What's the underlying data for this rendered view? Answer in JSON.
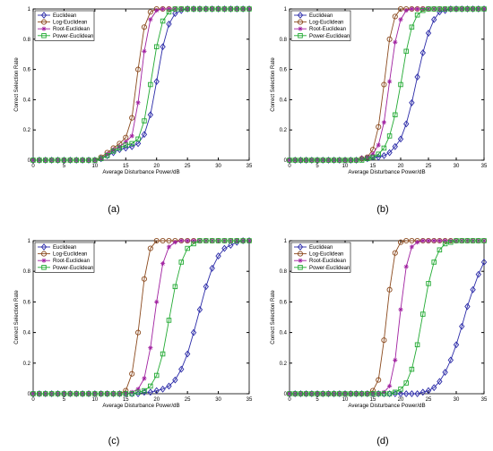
{
  "figure": {
    "panel_labels": [
      "(a)",
      "(b)",
      "(c)",
      "(d)"
    ]
  },
  "chart_data": [
    {
      "type": "line",
      "panel": "(a)",
      "xlabel": "Average Disturbance Power/dB",
      "ylabel": "Correct Selection Rate",
      "xlim": [
        0,
        35
      ],
      "ylim": [
        0,
        1
      ],
      "xticks": [
        0,
        5,
        10,
        15,
        20,
        25,
        30,
        35
      ],
      "yticks": [
        0,
        0.2,
        0.4,
        0.6,
        0.8,
        1
      ],
      "yticklabels": [
        "0",
        "0.2",
        "0.4",
        "0.6",
        "0.8",
        "1"
      ],
      "grid": false,
      "legend": "top-left",
      "x": [
        0,
        1,
        2,
        3,
        4,
        5,
        6,
        7,
        8,
        9,
        10,
        11,
        12,
        13,
        14,
        15,
        16,
        17,
        18,
        19,
        20,
        21,
        22,
        23,
        24,
        25,
        26,
        27,
        28,
        29,
        30,
        31,
        32,
        33,
        34,
        35
      ],
      "series": [
        {
          "name": "Euclidean",
          "color": "#2b2ba8",
          "marker": "diamond",
          "values": [
            0,
            0,
            0,
            0,
            0,
            0,
            0,
            0,
            0,
            0,
            0,
            0.01,
            0.03,
            0.05,
            0.07,
            0.08,
            0.09,
            0.11,
            0.17,
            0.3,
            0.52,
            0.75,
            0.9,
            0.97,
            0.99,
            1,
            1,
            1,
            1,
            1,
            1,
            1,
            1,
            1,
            1,
            1
          ]
        },
        {
          "name": "Log-Euclidean",
          "color": "#8b4a1e",
          "marker": "circle",
          "values": [
            0,
            0,
            0,
            0,
            0,
            0,
            0,
            0,
            0,
            0,
            0,
            0.02,
            0.05,
            0.08,
            0.11,
            0.15,
            0.28,
            0.6,
            0.88,
            0.98,
            1,
            1,
            1,
            1,
            1,
            1,
            1,
            1,
            1,
            1,
            1,
            1,
            1,
            1,
            1,
            1
          ]
        },
        {
          "name": "Root-Euclidean",
          "color": "#a020a0",
          "marker": "star",
          "values": [
            0,
            0,
            0,
            0,
            0,
            0,
            0,
            0,
            0,
            0,
            0,
            0.01,
            0.04,
            0.07,
            0.09,
            0.12,
            0.16,
            0.38,
            0.72,
            0.93,
            0.99,
            1,
            1,
            1,
            1,
            1,
            1,
            1,
            1,
            1,
            1,
            1,
            1,
            1,
            1,
            1
          ]
        },
        {
          "name": "Power-Euclidean",
          "color": "#22aa33",
          "marker": "square",
          "values": [
            0,
            0,
            0,
            0,
            0,
            0,
            0,
            0,
            0,
            0,
            0,
            0.01,
            0.03,
            0.06,
            0.08,
            0.1,
            0.11,
            0.14,
            0.26,
            0.5,
            0.75,
            0.92,
            0.98,
            1,
            1,
            1,
            1,
            1,
            1,
            1,
            1,
            1,
            1,
            1,
            1,
            1
          ]
        }
      ]
    },
    {
      "type": "line",
      "panel": "(b)",
      "xlabel": "Average Disturbance Power/dB",
      "ylabel": "Correct Selection Rate",
      "xlim": [
        0,
        35
      ],
      "ylim": [
        0,
        1
      ],
      "xticks": [
        0,
        5,
        10,
        15,
        20,
        25,
        30,
        35
      ],
      "yticks": [
        0,
        0.2,
        0.4,
        0.6,
        0.8,
        1
      ],
      "yticklabels": [
        "0",
        "0.2",
        "0.4",
        "0.6",
        "0.8",
        "1"
      ],
      "grid": false,
      "legend": "top-left",
      "x": [
        0,
        1,
        2,
        3,
        4,
        5,
        6,
        7,
        8,
        9,
        10,
        11,
        12,
        13,
        14,
        15,
        16,
        17,
        18,
        19,
        20,
        21,
        22,
        23,
        24,
        25,
        26,
        27,
        28,
        29,
        30,
        31,
        32,
        33,
        34,
        35
      ],
      "series": [
        {
          "name": "Euclidean",
          "color": "#2b2ba8",
          "marker": "diamond",
          "values": [
            0,
            0,
            0,
            0,
            0,
            0,
            0,
            0,
            0,
            0,
            0,
            0,
            0,
            0.01,
            0.01,
            0.02,
            0.02,
            0.03,
            0.05,
            0.09,
            0.14,
            0.24,
            0.38,
            0.55,
            0.71,
            0.84,
            0.93,
            0.98,
            0.99,
            1,
            1,
            1,
            1,
            1,
            1,
            1
          ]
        },
        {
          "name": "Log-Euclidean",
          "color": "#8b4a1e",
          "marker": "circle",
          "values": [
            0,
            0,
            0,
            0,
            0,
            0,
            0,
            0,
            0,
            0,
            0,
            0,
            0,
            0.01,
            0.02,
            0.07,
            0.22,
            0.5,
            0.8,
            0.95,
            1,
            1,
            1,
            1,
            1,
            1,
            1,
            1,
            1,
            1,
            1,
            1,
            1,
            1,
            1,
            1
          ]
        },
        {
          "name": "Root-Euclidean",
          "color": "#a020a0",
          "marker": "star",
          "values": [
            0,
            0,
            0,
            0,
            0,
            0,
            0,
            0,
            0,
            0,
            0,
            0,
            0,
            0.01,
            0.02,
            0.04,
            0.1,
            0.25,
            0.52,
            0.78,
            0.93,
            0.99,
            1,
            1,
            1,
            1,
            1,
            1,
            1,
            1,
            1,
            1,
            1,
            1,
            1,
            1
          ]
        },
        {
          "name": "Power-Euclidean",
          "color": "#22aa33",
          "marker": "square",
          "values": [
            0,
            0,
            0,
            0,
            0,
            0,
            0,
            0,
            0,
            0,
            0,
            0,
            0,
            0,
            0.01,
            0.02,
            0.04,
            0.08,
            0.16,
            0.3,
            0.5,
            0.72,
            0.88,
            0.96,
            0.99,
            1,
            1,
            1,
            1,
            1,
            1,
            1,
            1,
            1,
            1,
            1
          ]
        }
      ]
    },
    {
      "type": "line",
      "panel": "(c)",
      "xlabel": "Average Disturbance Power/dB",
      "ylabel": "Correct Selection Rate",
      "xlim": [
        0,
        35
      ],
      "ylim": [
        0,
        1
      ],
      "xticks": [
        0,
        5,
        10,
        15,
        20,
        25,
        30,
        35
      ],
      "yticks": [
        0,
        0.2,
        0.4,
        0.6,
        0.8,
        1
      ],
      "yticklabels": [
        "0",
        "0.2",
        "0.4",
        "0.6",
        "0.8",
        "1"
      ],
      "grid": false,
      "legend": "top-left",
      "x": [
        0,
        1,
        2,
        3,
        4,
        5,
        6,
        7,
        8,
        9,
        10,
        11,
        12,
        13,
        14,
        15,
        16,
        17,
        18,
        19,
        20,
        21,
        22,
        23,
        24,
        25,
        26,
        27,
        28,
        29,
        30,
        31,
        32,
        33,
        34,
        35
      ],
      "series": [
        {
          "name": "Euclidean",
          "color": "#2b2ba8",
          "marker": "diamond",
          "values": [
            0,
            0,
            0,
            0,
            0,
            0,
            0,
            0,
            0,
            0,
            0,
            0,
            0,
            0,
            0,
            0,
            0,
            0,
            0.01,
            0.01,
            0.02,
            0.03,
            0.05,
            0.09,
            0.16,
            0.26,
            0.4,
            0.55,
            0.7,
            0.82,
            0.9,
            0.95,
            0.97,
            0.99,
            1,
            1
          ]
        },
        {
          "name": "Log-Euclidean",
          "color": "#8b4a1e",
          "marker": "circle",
          "values": [
            0,
            0,
            0,
            0,
            0,
            0,
            0,
            0,
            0,
            0,
            0,
            0,
            0,
            0,
            0,
            0.02,
            0.13,
            0.4,
            0.75,
            0.95,
            1,
            1,
            1,
            1,
            1,
            1,
            1,
            1,
            1,
            1,
            1,
            1,
            1,
            1,
            1,
            1
          ]
        },
        {
          "name": "Root-Euclidean",
          "color": "#a020a0",
          "marker": "star",
          "values": [
            0,
            0,
            0,
            0,
            0,
            0,
            0,
            0,
            0,
            0,
            0,
            0,
            0,
            0,
            0,
            0,
            0.01,
            0.03,
            0.1,
            0.3,
            0.6,
            0.85,
            0.96,
            0.99,
            1,
            1,
            1,
            1,
            1,
            1,
            1,
            1,
            1,
            1,
            1,
            1
          ]
        },
        {
          "name": "Power-Euclidean",
          "color": "#22aa33",
          "marker": "square",
          "values": [
            0,
            0,
            0,
            0,
            0,
            0,
            0,
            0,
            0,
            0,
            0,
            0,
            0,
            0,
            0,
            0,
            0,
            0.01,
            0.02,
            0.05,
            0.12,
            0.26,
            0.48,
            0.7,
            0.86,
            0.95,
            0.98,
            1,
            1,
            1,
            1,
            1,
            1,
            1,
            1,
            1
          ]
        }
      ]
    },
    {
      "type": "line",
      "panel": "(d)",
      "xlabel": "Average Disturbance Power/dB",
      "ylabel": "Correct Selection Rate",
      "xlim": [
        0,
        35
      ],
      "ylim": [
        0,
        1
      ],
      "xticks": [
        0,
        5,
        10,
        15,
        20,
        25,
        30,
        35
      ],
      "yticks": [
        0,
        0.2,
        0.4,
        0.6,
        0.8,
        1
      ],
      "yticklabels": [
        "0",
        "0.2",
        "0.4",
        "0.6",
        "0.8",
        "1"
      ],
      "grid": false,
      "legend": "top-left",
      "x": [
        0,
        1,
        2,
        3,
        4,
        5,
        6,
        7,
        8,
        9,
        10,
        11,
        12,
        13,
        14,
        15,
        16,
        17,
        18,
        19,
        20,
        21,
        22,
        23,
        24,
        25,
        26,
        27,
        28,
        29,
        30,
        31,
        32,
        33,
        34,
        35
      ],
      "series": [
        {
          "name": "Euclidean",
          "color": "#2b2ba8",
          "marker": "diamond",
          "values": [
            0,
            0,
            0,
            0,
            0,
            0,
            0,
            0,
            0,
            0,
            0,
            0,
            0,
            0,
            0,
            0,
            0,
            0,
            0,
            0,
            0,
            0,
            0,
            0,
            0.01,
            0.02,
            0.04,
            0.08,
            0.14,
            0.22,
            0.32,
            0.44,
            0.57,
            0.68,
            0.78,
            0.86
          ]
        },
        {
          "name": "Log-Euclidean",
          "color": "#8b4a1e",
          "marker": "circle",
          "values": [
            0,
            0,
            0,
            0,
            0,
            0,
            0,
            0,
            0,
            0,
            0,
            0,
            0,
            0,
            0,
            0.02,
            0.09,
            0.35,
            0.68,
            0.92,
            0.99,
            1,
            1,
            1,
            1,
            1,
            1,
            1,
            1,
            1,
            1,
            1,
            1,
            1,
            1,
            1
          ]
        },
        {
          "name": "Root-Euclidean",
          "color": "#a020a0",
          "marker": "star",
          "values": [
            0,
            0,
            0,
            0,
            0,
            0,
            0,
            0,
            0,
            0,
            0,
            0,
            0,
            0,
            0,
            0,
            0,
            0.01,
            0.05,
            0.22,
            0.55,
            0.83,
            0.96,
            0.99,
            1,
            1,
            1,
            1,
            1,
            1,
            1,
            1,
            1,
            1,
            1,
            1
          ]
        },
        {
          "name": "Power-Euclidean",
          "color": "#22aa33",
          "marker": "square",
          "values": [
            0,
            0,
            0,
            0,
            0,
            0,
            0,
            0,
            0,
            0,
            0,
            0,
            0,
            0,
            0,
            0,
            0,
            0,
            0,
            0.01,
            0.03,
            0.07,
            0.16,
            0.32,
            0.52,
            0.72,
            0.86,
            0.94,
            0.98,
            0.99,
            1,
            1,
            1,
            1,
            1,
            1
          ]
        }
      ]
    }
  ]
}
